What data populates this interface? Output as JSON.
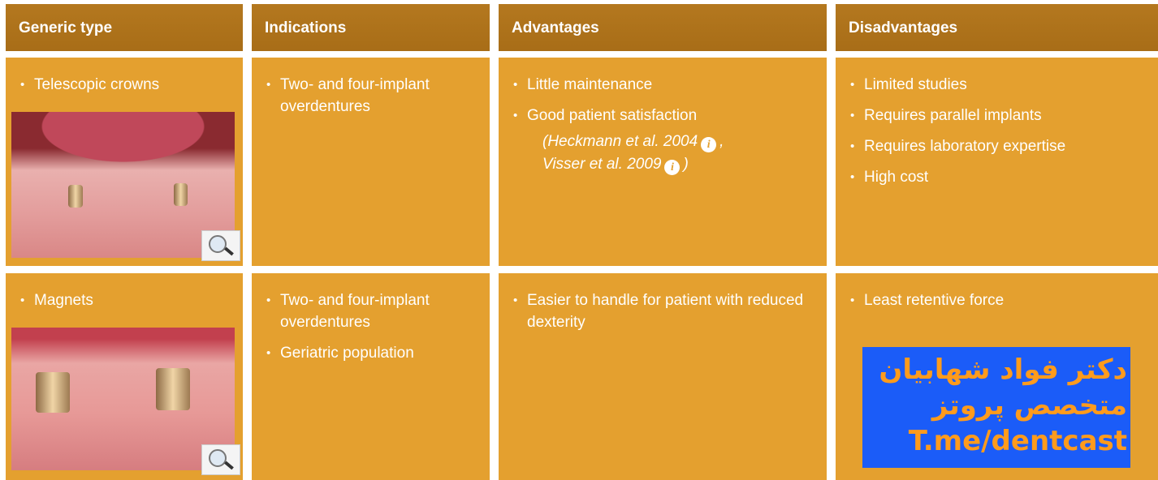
{
  "table": {
    "headers": [
      "Generic type",
      "Indications",
      "Advantages",
      "Disadvantages"
    ],
    "rows": [
      {
        "type": [
          "Telescopic crowns"
        ],
        "indications": [
          "Two- and four-implant overdentures"
        ],
        "advantages": [
          "Little maintenance",
          "Good patient satisfaction"
        ],
        "citation": [
          "(Heckmann et al. 2004",
          ",",
          "Visser et al. 2009",
          ")"
        ],
        "disadvantages": [
          "Limited studies",
          "Requires parallel implants",
          "Requires laboratory expertise",
          "High cost"
        ]
      },
      {
        "type": [
          "Magnets"
        ],
        "indications": [
          "Two- and four-implant overdentures",
          "Geriatric population"
        ],
        "advantages": [
          "Easier to handle for patient with reduced dexterity"
        ],
        "disadvantages": [
          "Least retentive force"
        ]
      }
    ]
  },
  "watermark": {
    "lines": [
      "دکتر فواد شهابیان",
      "متخصص پروتز",
      "T.me/dentcast"
    ]
  }
}
